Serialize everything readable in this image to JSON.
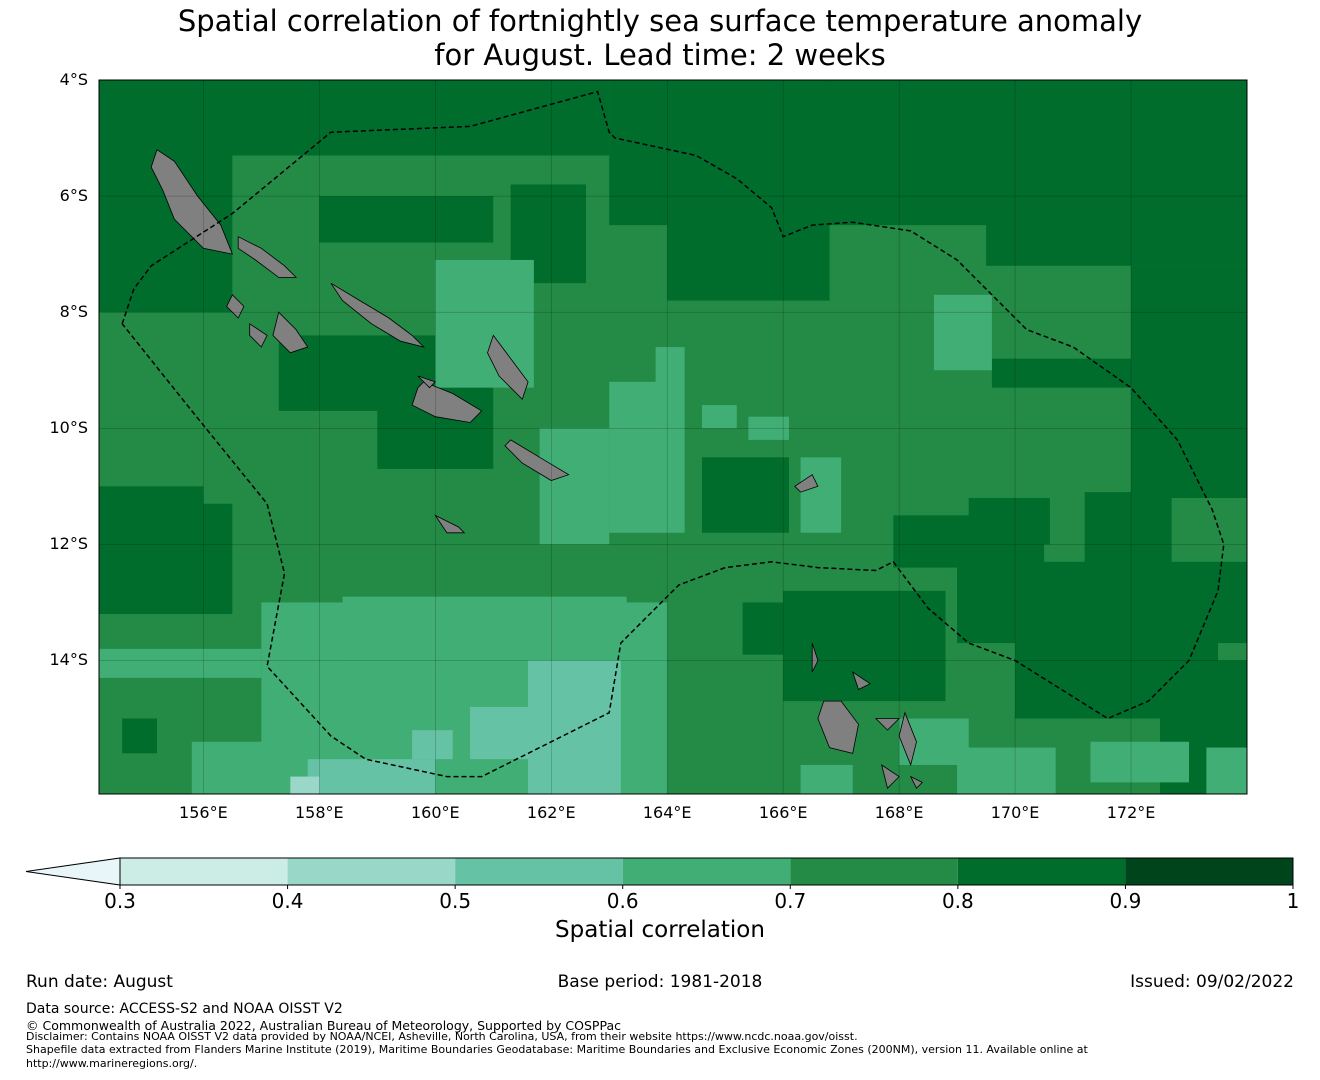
{
  "title": "Spatial correlation of fortnightly sea surface temperature anomaly\nfor August. Lead time: 2 weeks",
  "map": {
    "lon_range": [
      154.2,
      174.0
    ],
    "lat_range": [
      -4.0,
      -16.3
    ],
    "lat_ticks": [
      {
        "value": -4,
        "label": "4°S"
      },
      {
        "value": -6,
        "label": "6°S"
      },
      {
        "value": -8,
        "label": "8°S"
      },
      {
        "value": -10,
        "label": "10°S"
      },
      {
        "value": -12,
        "label": "12°S"
      },
      {
        "value": -14,
        "label": "14°S"
      }
    ],
    "lon_ticks": [
      {
        "value": 156,
        "label": "156°E"
      },
      {
        "value": 158,
        "label": "158°E"
      },
      {
        "value": 160,
        "label": "160°E"
      },
      {
        "value": 162,
        "label": "162°E"
      },
      {
        "value": 164,
        "label": "164°E"
      },
      {
        "value": 166,
        "label": "166°E"
      },
      {
        "value": 168,
        "label": "168°E"
      },
      {
        "value": 170,
        "label": "170°E"
      },
      {
        "value": 172,
        "label": "172°E"
      }
    ],
    "land_color": "#808080",
    "boundary_style": "dashed"
  },
  "colorbar": {
    "label": "Spatial correlation",
    "under_color": "#e8f6f9",
    "bins": [
      {
        "from": 0.3,
        "to": 0.4,
        "color": "#ccece6"
      },
      {
        "from": 0.4,
        "to": 0.5,
        "color": "#99d8c9"
      },
      {
        "from": 0.5,
        "to": 0.6,
        "color": "#66c2a4"
      },
      {
        "from": 0.6,
        "to": 0.7,
        "color": "#41ae76"
      },
      {
        "from": 0.7,
        "to": 0.8,
        "color": "#238b45"
      },
      {
        "from": 0.8,
        "to": 0.9,
        "color": "#006d2c"
      },
      {
        "from": 0.9,
        "to": 1.0,
        "color": "#00441b"
      }
    ],
    "ticks": [
      "0.3",
      "0.4",
      "0.5",
      "0.6",
      "0.7",
      "0.8",
      "0.9",
      "1"
    ]
  },
  "footer": {
    "run_date": "Run date: August",
    "base_period": "Base period: 1981-2018",
    "issued": "Issued: 09/02/2022",
    "data_source": "Data source: ACCESS-S2 and NOAA OISST V2",
    "copyright": "© Commonwealth of Australia 2022, Australian Bureau of Meteorology, Supported by COSPPac",
    "disclaimer": "Disclaimer: Contains NOAA OISST V2 data provided by NOAA/NCEI, Asheville, North Carolina, USA, from their website https://www.ncdc.noaa.gov/oisst.",
    "shapefile": "Shapefile data extracted from Flanders Marine Institute (2019), Maritime Boundaries Geodatabase: Maritime Boundaries and Exclusive Economic Zones (200NM), version 11. Available online at http://www.marineregions.org/."
  }
}
